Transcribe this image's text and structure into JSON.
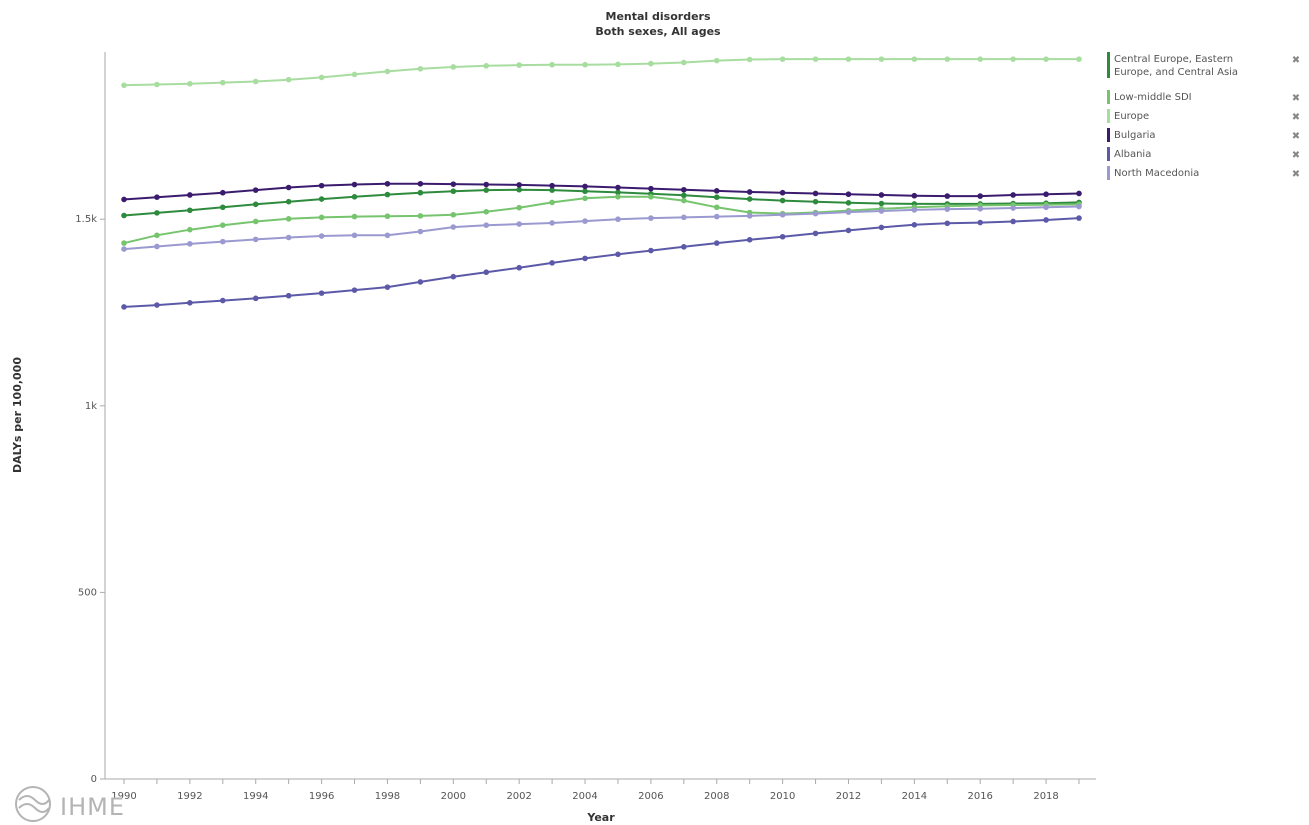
{
  "chart_data": {
    "type": "line",
    "title": "Mental disorders",
    "subtitle": "Both sexes, All ages",
    "xlabel": "Year",
    "ylabel": "DALYs per 100,000",
    "xlim": [
      1990,
      2019
    ],
    "ylim": [
      0,
      1900
    ],
    "x_ticks": [
      1990,
      1992,
      1994,
      1996,
      1998,
      2000,
      2002,
      2004,
      2006,
      2008,
      2010,
      2012,
      2014,
      2016,
      2018
    ],
    "x_tick_labels": [
      "1990",
      "1992",
      "1994",
      "1996",
      "1998",
      "2000",
      "2002",
      "2004",
      "2006",
      "2008",
      "2010",
      "2012",
      "2014",
      "2016",
      "2018"
    ],
    "y_ticks": [
      0,
      500,
      1000,
      1500
    ],
    "y_tick_labels": [
      "0",
      "500",
      "1k",
      "1.5k"
    ],
    "grid": false,
    "legend_position": "right",
    "x": [
      1990,
      1991,
      1992,
      1993,
      1994,
      1995,
      1996,
      1997,
      1998,
      1999,
      2000,
      2001,
      2002,
      2003,
      2004,
      2005,
      2006,
      2007,
      2008,
      2009,
      2010,
      2011,
      2012,
      2013,
      2014,
      2015,
      2016,
      2017,
      2018,
      2019
    ],
    "series": [
      {
        "name": "Central Europe, Eastern Europe, and Central Asia",
        "legend_lines": [
          "Central Europe, Eastern",
          "Europe, and Central Asia"
        ],
        "color": "#2e8b3e",
        "values": [
          1510,
          1517,
          1524,
          1532,
          1540,
          1547,
          1554,
          1560,
          1566,
          1571,
          1575,
          1578,
          1579,
          1578,
          1575,
          1572,
          1568,
          1564,
          1559,
          1554,
          1550,
          1547,
          1544,
          1542,
          1541,
          1541,
          1541,
          1542,
          1543,
          1545
        ]
      },
      {
        "name": "Low-middle SDI",
        "legend_lines": [
          "Low-middle SDI"
        ],
        "color": "#76c46e",
        "values": [
          1436,
          1457,
          1472,
          1484,
          1494,
          1501,
          1505,
          1507,
          1508,
          1509,
          1512,
          1520,
          1531,
          1545,
          1556,
          1560,
          1560,
          1550,
          1532,
          1518,
          1515,
          1518,
          1523,
          1528,
          1532,
          1535,
          1537,
          1538,
          1539,
          1540
        ]
      },
      {
        "name": "Europe",
        "legend_lines": [
          "Europe"
        ],
        "color": "#a8dda0",
        "values": [
          1859,
          1861,
          1863,
          1866,
          1869,
          1874,
          1880,
          1888,
          1896,
          1903,
          1908,
          1911,
          1913,
          1914,
          1914,
          1915,
          1917,
          1920,
          1925,
          1928,
          1929,
          1929,
          1929,
          1929,
          1929,
          1929,
          1929,
          1929,
          1929,
          1929
        ]
      },
      {
        "name": "Bulgaria",
        "legend_lines": [
          "Bulgaria"
        ],
        "color": "#3b1b6e",
        "values": [
          1553,
          1559,
          1565,
          1571,
          1578,
          1585,
          1590,
          1593,
          1595,
          1595,
          1594,
          1593,
          1592,
          1590,
          1588,
          1585,
          1582,
          1579,
          1576,
          1573,
          1571,
          1569,
          1567,
          1565,
          1563,
          1562,
          1562,
          1565,
          1567,
          1569
        ]
      },
      {
        "name": "Albania",
        "legend_lines": [
          "Albania"
        ],
        "color": "#5c5aa8",
        "values": [
          1265,
          1270,
          1276,
          1282,
          1288,
          1295,
          1302,
          1310,
          1318,
          1332,
          1346,
          1358,
          1370,
          1383,
          1395,
          1406,
          1416,
          1426,
          1436,
          1445,
          1453,
          1462,
          1470,
          1478,
          1485,
          1489,
          1491,
          1494,
          1498,
          1503
        ]
      },
      {
        "name": "North Macedonia",
        "legend_lines": [
          "North Macedonia"
        ],
        "color": "#9a99d0",
        "values": [
          1420,
          1427,
          1434,
          1440,
          1446,
          1451,
          1455,
          1457,
          1457,
          1467,
          1479,
          1484,
          1487,
          1490,
          1495,
          1500,
          1503,
          1505,
          1507,
          1509,
          1512,
          1515,
          1519,
          1522,
          1525,
          1527,
          1528,
          1530,
          1532,
          1534
        ]
      }
    ]
  },
  "legend": {
    "close_glyph": "✖"
  },
  "logo": {
    "text": "IHME"
  }
}
